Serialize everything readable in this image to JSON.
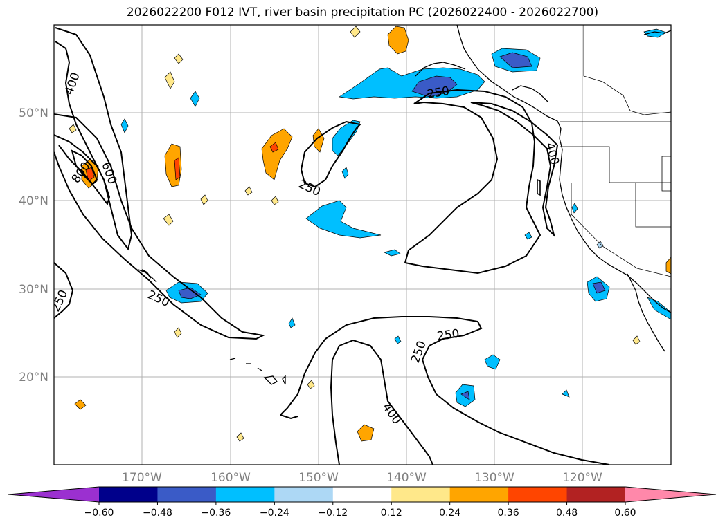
{
  "title": "2026022200 F012 IVT, river basin precipitation PC (2026022400 - 2026022700)",
  "map": {
    "lat_labels": [
      "20°N",
      "30°N",
      "40°N",
      "50°N"
    ],
    "lon_labels": [
      "170°W",
      "160°W",
      "150°W",
      "140°W",
      "130°W",
      "120°W"
    ],
    "contour_levels": [
      "250",
      "400",
      "600",
      "800"
    ],
    "contour_labels": [
      "400",
      "600",
      "800",
      "250",
      "250",
      "250",
      "250",
      "400",
      "250",
      "400",
      "250"
    ]
  },
  "colorbar": {
    "colors": [
      "#9b30d0",
      "#00008b",
      "#3a5bc7",
      "#00bfff",
      "#add8f5",
      "#ffffff",
      "#ffe88a",
      "#ffa500",
      "#ff4500",
      "#b22222",
      "#ff88aa"
    ],
    "tick_labels": [
      "−0.60",
      "−0.48",
      "−0.36",
      "−0.24",
      "−0.12",
      "0.12",
      "0.24",
      "0.36",
      "0.48",
      "0.60"
    ]
  }
}
